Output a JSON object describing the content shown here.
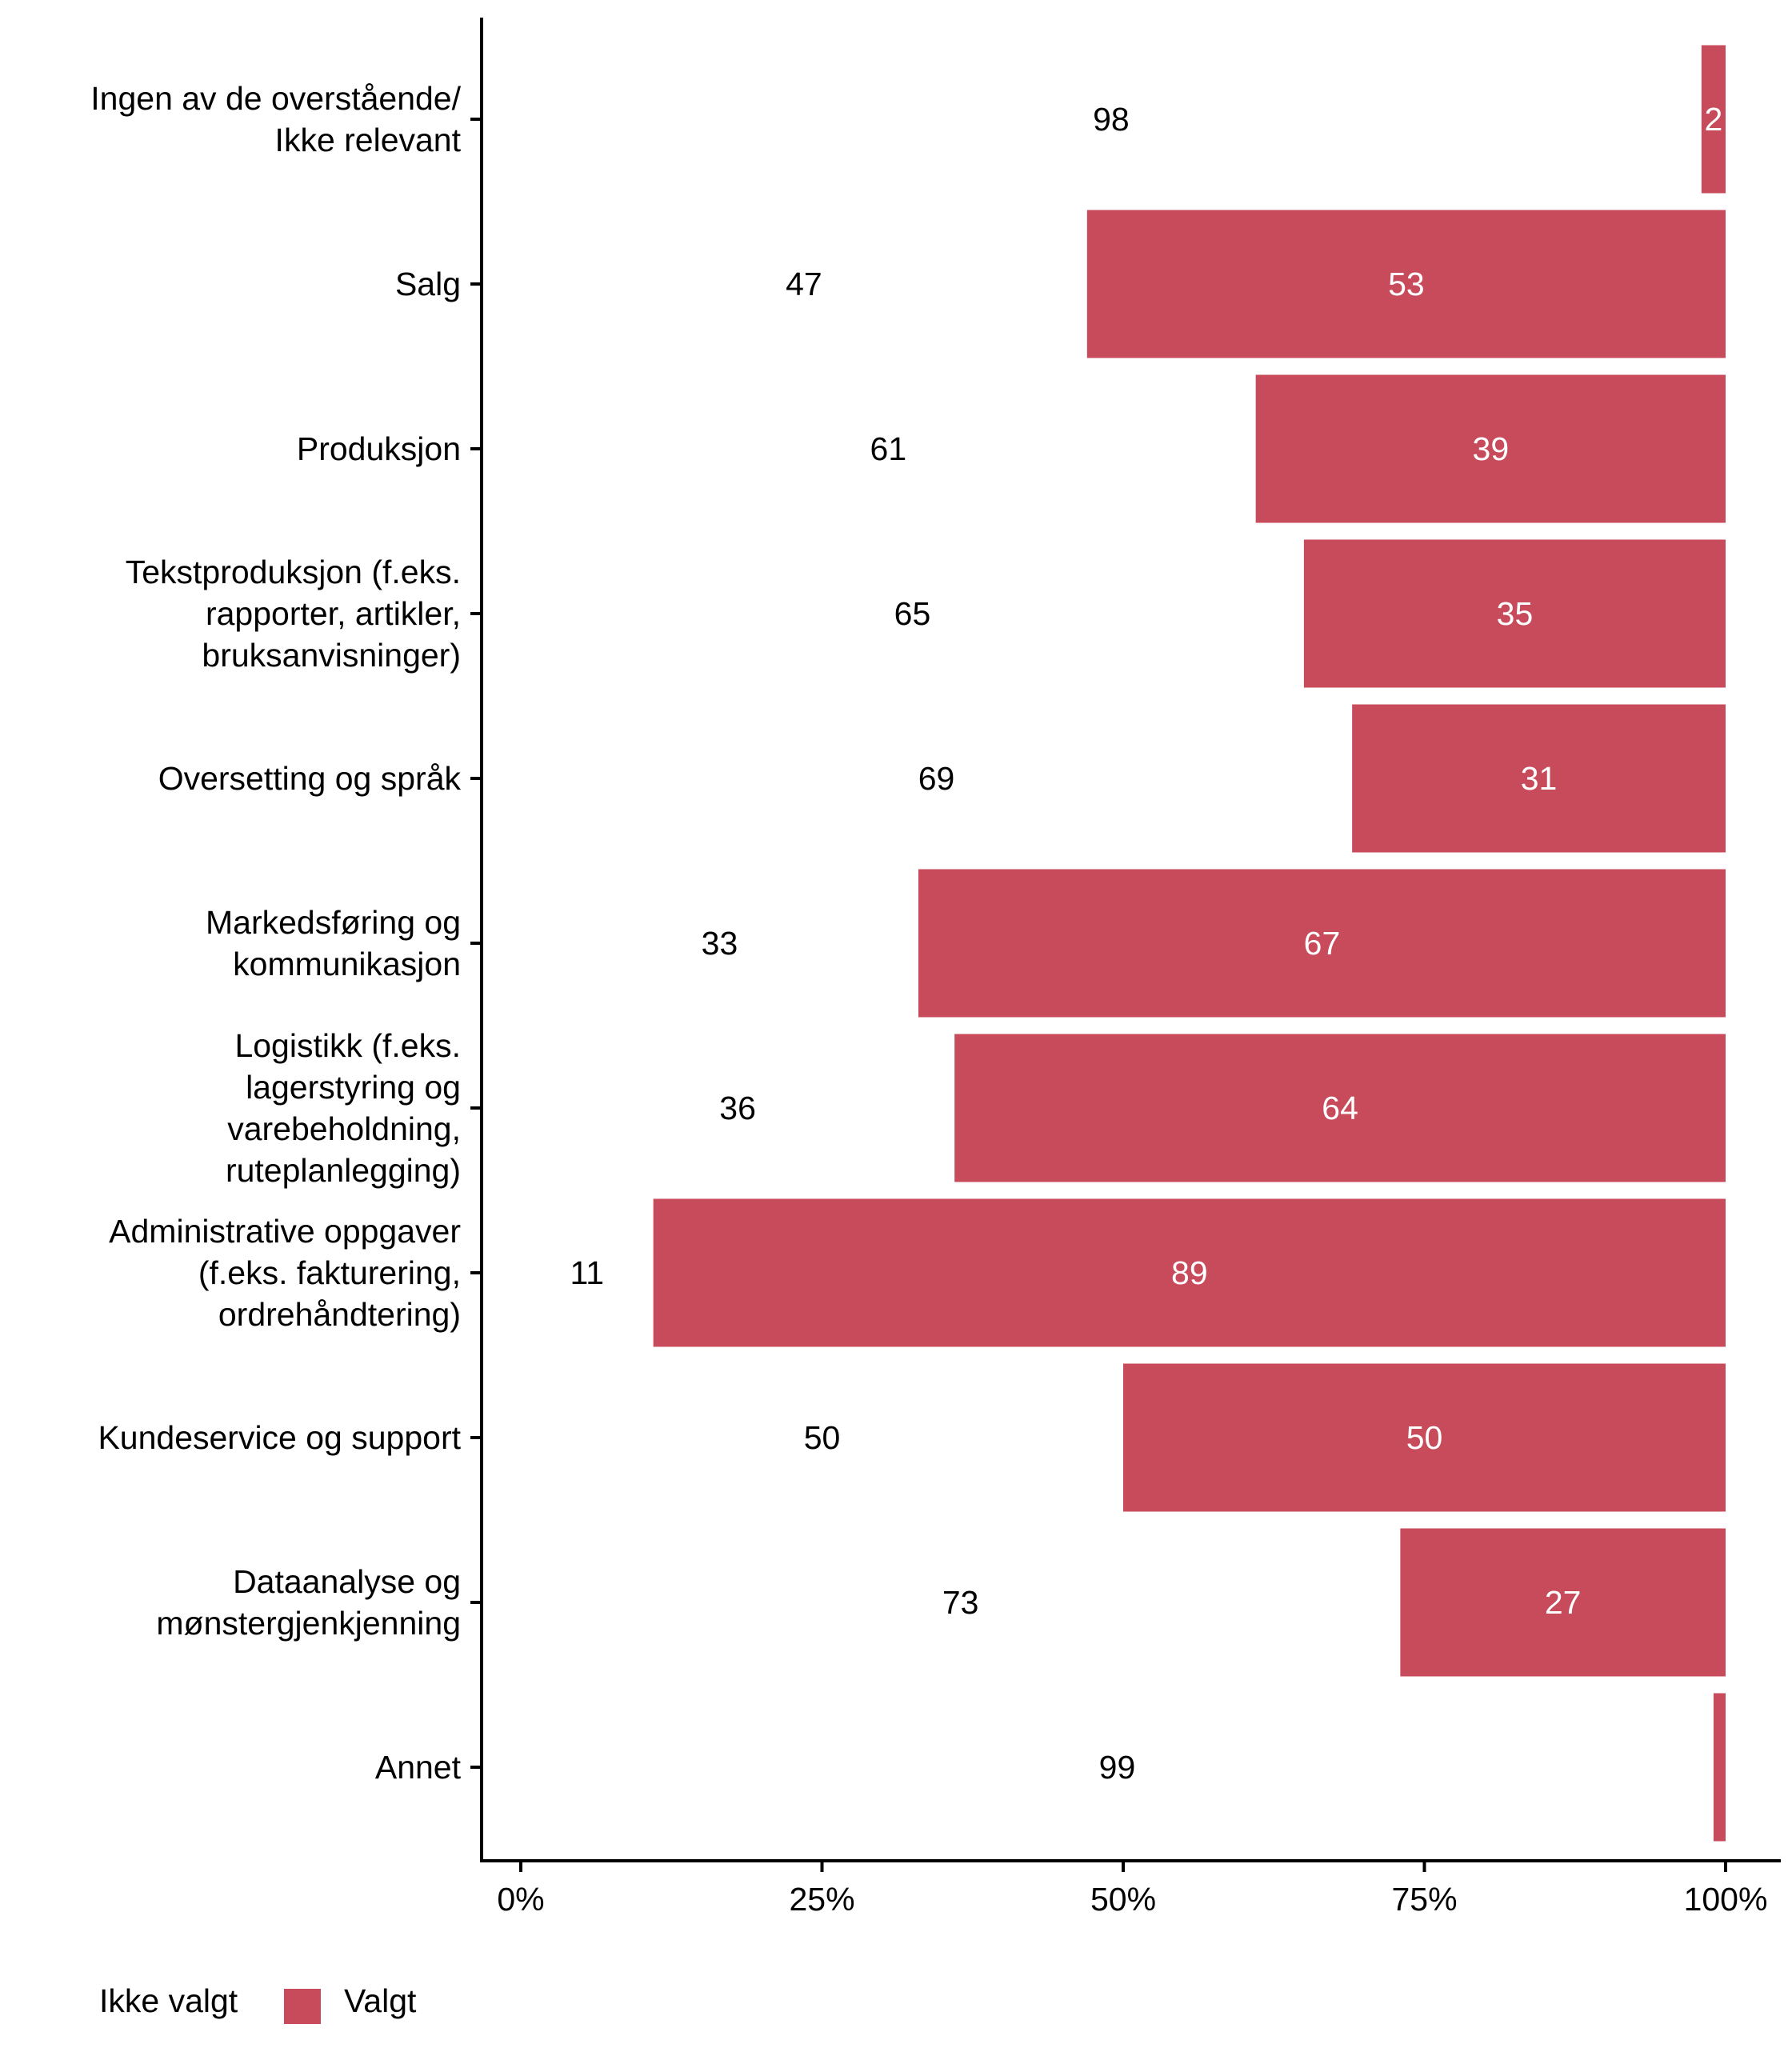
{
  "chart_data": {
    "type": "bar",
    "orientation": "horizontal",
    "stacked": "percent",
    "title": "",
    "xlabel": "",
    "ylabel": "",
    "xlim": [
      0,
      100
    ],
    "x_ticks": [
      "0%",
      "25%",
      "50%",
      "75%",
      "100%"
    ],
    "x_tick_values": [
      0,
      25,
      50,
      75,
      100
    ],
    "grid": false,
    "categories": [
      [
        "Ingen av de overstående/",
        "Ikke relevant"
      ],
      [
        "Salg"
      ],
      [
        "Produksjon"
      ],
      [
        "Tekstproduksjon (f.eks.",
        "rapporter, artikler,",
        "bruksanvisninger)"
      ],
      [
        "Oversetting og språk"
      ],
      [
        "Markedsføring og",
        "kommunikasjon"
      ],
      [
        "Logistikk (f.eks.",
        "lagerstyring og",
        "varebeholdning,",
        "ruteplanlegging)"
      ],
      [
        "Administrative oppgaver",
        "(f.eks. fakturering,",
        "ordrehåndtering)"
      ],
      [
        "Kundeservice og support"
      ],
      [
        "Dataanalyse og",
        "mønstergjenkjenning"
      ],
      [
        "Annet"
      ]
    ],
    "series": [
      {
        "name": "Ikke valgt",
        "color": "#FFFFFF",
        "values": [
          98,
          47,
          61,
          65,
          69,
          33,
          36,
          11,
          50,
          73,
          99
        ],
        "labels": [
          "98",
          "47",
          "61",
          "65",
          "69",
          "33",
          "36",
          "11",
          "50",
          "73",
          "99"
        ],
        "label_color": "#000000"
      },
      {
        "name": "Valgt",
        "color": "#C84B5B",
        "values": [
          2,
          53,
          39,
          35,
          31,
          67,
          64,
          89,
          50,
          27,
          1
        ],
        "labels": [
          "2",
          "53",
          "39",
          "35",
          "31",
          "67",
          "64",
          "89",
          "50",
          "27",
          ""
        ],
        "label_color": "#FFFFFF"
      }
    ],
    "legend": {
      "position": "bottom-left",
      "entries": [
        "Ikke valgt",
        "Valgt"
      ]
    }
  }
}
